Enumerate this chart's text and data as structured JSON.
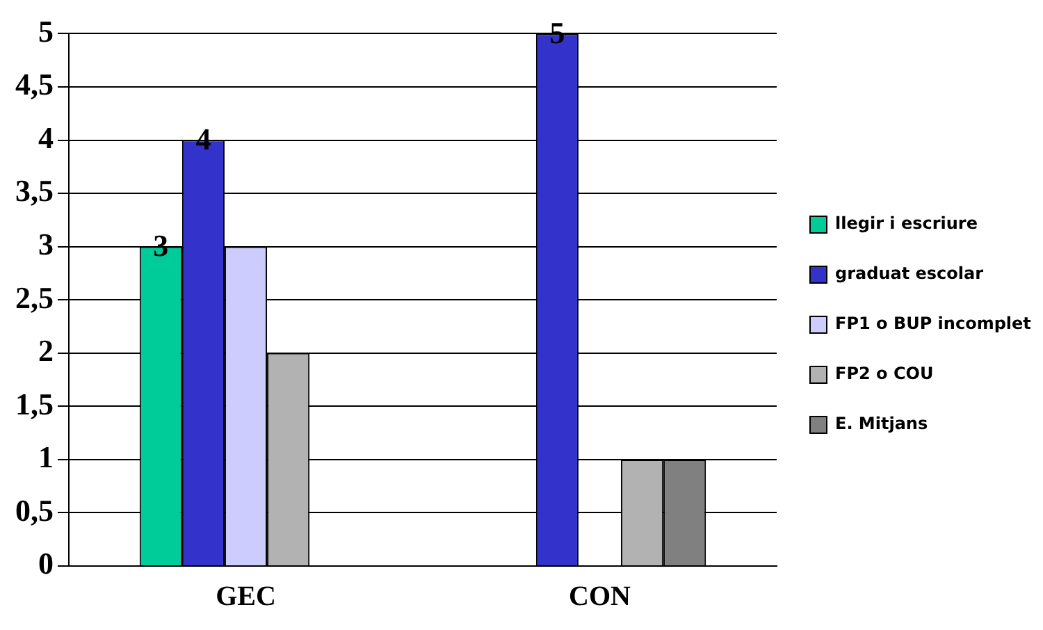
{
  "chart_data": {
    "type": "bar",
    "categories": [
      "GEC",
      "CON"
    ],
    "series": [
      {
        "name": "llegir i escriure",
        "color": "#00cc99",
        "values": [
          3,
          0
        ],
        "value_labels": [
          "3",
          null
        ]
      },
      {
        "name": "graduat escolar",
        "color": "#3333cc",
        "values": [
          4,
          5
        ],
        "value_labels": [
          "4",
          "5"
        ]
      },
      {
        "name": "FP1 o BUP incomplet",
        "color": "#ccccff",
        "values": [
          3,
          0
        ]
      },
      {
        "name": "FP2 o COU",
        "color": "#b2b2b2",
        "values": [
          2,
          1
        ]
      },
      {
        "name": "E. Mitjans",
        "color": "#808080",
        "values": [
          0,
          1
        ]
      }
    ],
    "ylim": [
      0,
      5
    ],
    "yticks": [
      0,
      {
        "value": 0.5,
        "label": "0,5"
      },
      1,
      {
        "value": 1.5,
        "label": "1,5"
      },
      2,
      {
        "value": 2.5,
        "label": "2,5"
      },
      3,
      {
        "value": 3.5,
        "label": "3,5"
      },
      4,
      {
        "value": 4.5,
        "label": "4,5"
      },
      5
    ],
    "grid": "y",
    "legend": "right"
  }
}
